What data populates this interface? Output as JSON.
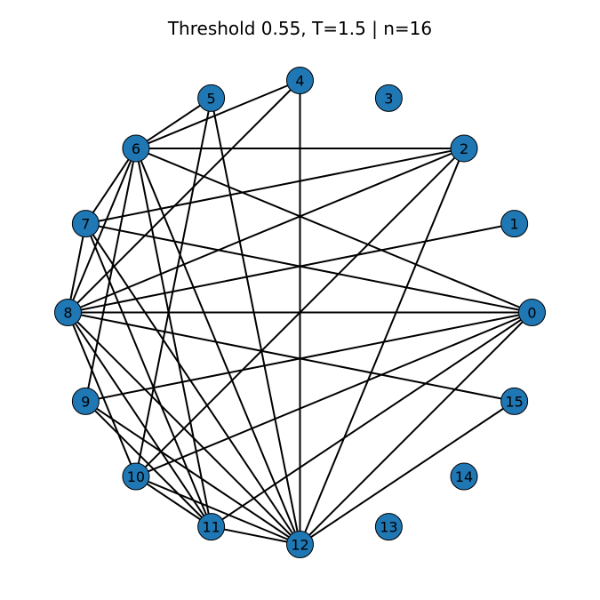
{
  "title": "Threshold 0.55, T=1.5 | n=16",
  "colors": {
    "node_fill": "#1f77b4",
    "node_stroke": "#000000",
    "edge": "#000000",
    "background": "#ffffff"
  },
  "graph": {
    "layout": "circular",
    "nodes": [
      {
        "id": 0,
        "label": "0"
      },
      {
        "id": 1,
        "label": "1"
      },
      {
        "id": 2,
        "label": "2"
      },
      {
        "id": 3,
        "label": "3"
      },
      {
        "id": 4,
        "label": "4"
      },
      {
        "id": 5,
        "label": "5"
      },
      {
        "id": 6,
        "label": "6"
      },
      {
        "id": 7,
        "label": "7"
      },
      {
        "id": 8,
        "label": "8"
      },
      {
        "id": 9,
        "label": "9"
      },
      {
        "id": 10,
        "label": "10"
      },
      {
        "id": 11,
        "label": "11"
      },
      {
        "id": 12,
        "label": "12"
      },
      {
        "id": 13,
        "label": "13"
      },
      {
        "id": 14,
        "label": "14"
      },
      {
        "id": 15,
        "label": "15"
      }
    ],
    "edges": [
      [
        0,
        6
      ],
      [
        0,
        7
      ],
      [
        0,
        8
      ],
      [
        0,
        9
      ],
      [
        0,
        10
      ],
      [
        0,
        11
      ],
      [
        0,
        12
      ],
      [
        1,
        8
      ],
      [
        2,
        6
      ],
      [
        2,
        7
      ],
      [
        2,
        8
      ],
      [
        2,
        10
      ],
      [
        2,
        12
      ],
      [
        4,
        6
      ],
      [
        4,
        8
      ],
      [
        4,
        12
      ],
      [
        5,
        6
      ],
      [
        5,
        10
      ],
      [
        5,
        12
      ],
      [
        6,
        7
      ],
      [
        6,
        8
      ],
      [
        6,
        9
      ],
      [
        6,
        11
      ],
      [
        6,
        12
      ],
      [
        7,
        8
      ],
      [
        7,
        11
      ],
      [
        7,
        12
      ],
      [
        8,
        10
      ],
      [
        8,
        11
      ],
      [
        8,
        12
      ],
      [
        8,
        15
      ],
      [
        9,
        11
      ],
      [
        9,
        12
      ],
      [
        10,
        11
      ],
      [
        10,
        12
      ],
      [
        11,
        12
      ],
      [
        12,
        15
      ]
    ]
  }
}
